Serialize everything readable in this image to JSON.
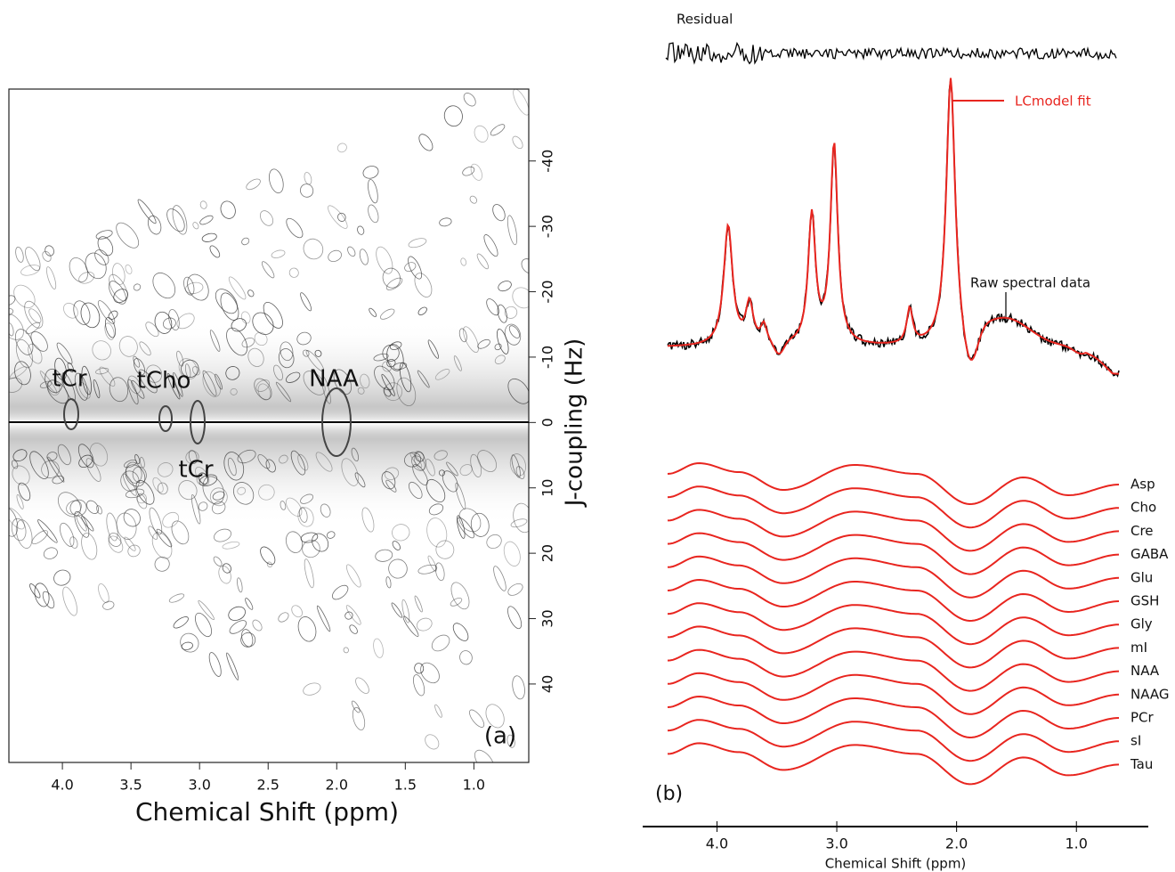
{
  "chart_data": [
    {
      "type": "contour",
      "xlabel": "Chemical Shift (ppm)",
      "ylabel": "J-coupling (Hz)",
      "xlim": [
        4.39,
        0.6
      ],
      "ylim": [
        -51,
        52
      ],
      "xticks": [
        {
          "value": 4,
          "label": "4.0"
        },
        3.5,
        {
          "value": 3,
          "label": "3.0"
        },
        2.5,
        {
          "value": 2,
          "label": "2.0"
        },
        1.5,
        {
          "value": 1,
          "label": "1.0"
        }
      ],
      "yticks": [
        -40,
        -30,
        -20,
        -10,
        0,
        10,
        20,
        30,
        40
      ],
      "annotations": [
        "tCr",
        "tCho",
        "tCr",
        "NAA",
        "(a)"
      ]
    },
    {
      "type": "line",
      "xlabel": "Chemical Shift (ppm)",
      "xlim": [
        4.62,
        0.4
      ],
      "xticks": [
        {
          "value": 4,
          "label": "4.0"
        },
        {
          "value": 3,
          "label": "3.0"
        },
        {
          "value": 2,
          "label": "2.0"
        },
        {
          "value": 1,
          "label": "1.0"
        }
      ],
      "annotations": [
        "Residual",
        "LCmodel fit",
        "Raw spectral data",
        "(b)"
      ],
      "fit_color": "#e8251f",
      "series": [
        {
          "name": "Asp"
        },
        {
          "name": "Cho"
        },
        {
          "name": "Cre"
        },
        {
          "name": "GABA"
        },
        {
          "name": "Glu"
        },
        {
          "name": "GSH"
        },
        {
          "name": "Gly"
        },
        {
          "name": "mI"
        },
        {
          "name": "NAA"
        },
        {
          "name": "NAAG"
        },
        {
          "name": "PCr"
        },
        {
          "name": "sI"
        },
        {
          "name": "Tau"
        }
      ]
    }
  ]
}
